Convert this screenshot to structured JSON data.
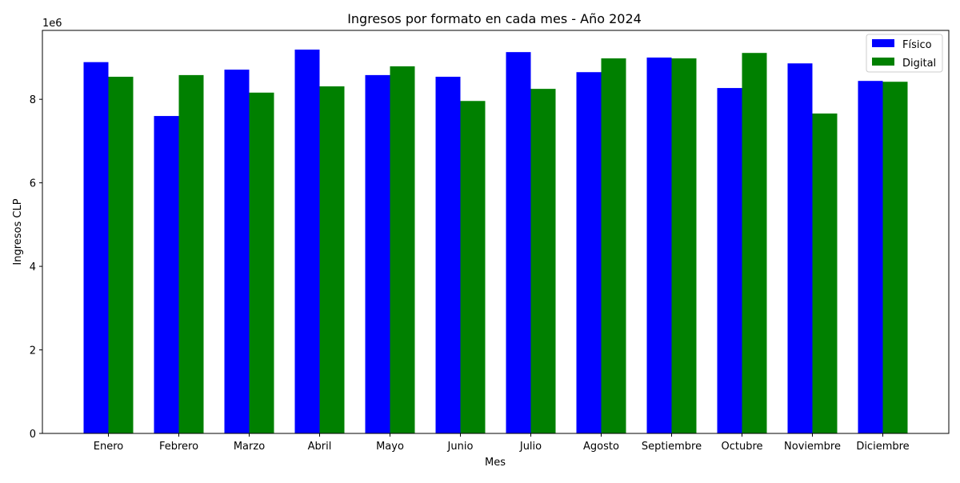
{
  "chart_data": {
    "type": "bar",
    "title": "Ingresos por formato en cada mes - Año 2024",
    "xlabel": "Mes",
    "ylabel": "Ingresos CLP",
    "y_offset_label": "1e6",
    "categories": [
      "Enero",
      "Febrero",
      "Marzo",
      "Abril",
      "Mayo",
      "Junio",
      "Julio",
      "Agosto",
      "Septiembre",
      "Octubre",
      "Noviembre",
      "Diciembre"
    ],
    "series": [
      {
        "name": "Físico",
        "color": "#0000ff",
        "values": [
          8890000,
          7600000,
          8710000,
          9190000,
          8580000,
          8540000,
          9130000,
          8650000,
          9000000,
          8270000,
          8860000,
          8440000
        ]
      },
      {
        "name": "Digital",
        "color": "#008000",
        "values": [
          8540000,
          8580000,
          8160000,
          8310000,
          8790000,
          7960000,
          8250000,
          8980000,
          8980000,
          9110000,
          7660000,
          8420000
        ]
      }
    ],
    "ylim": [
      0,
      9650000
    ],
    "yticks": [
      0,
      2000000,
      4000000,
      6000000,
      8000000
    ],
    "ytick_labels": [
      "0",
      "2",
      "4",
      "6",
      "8"
    ],
    "grid": false,
    "legend_position": "top-right"
  }
}
